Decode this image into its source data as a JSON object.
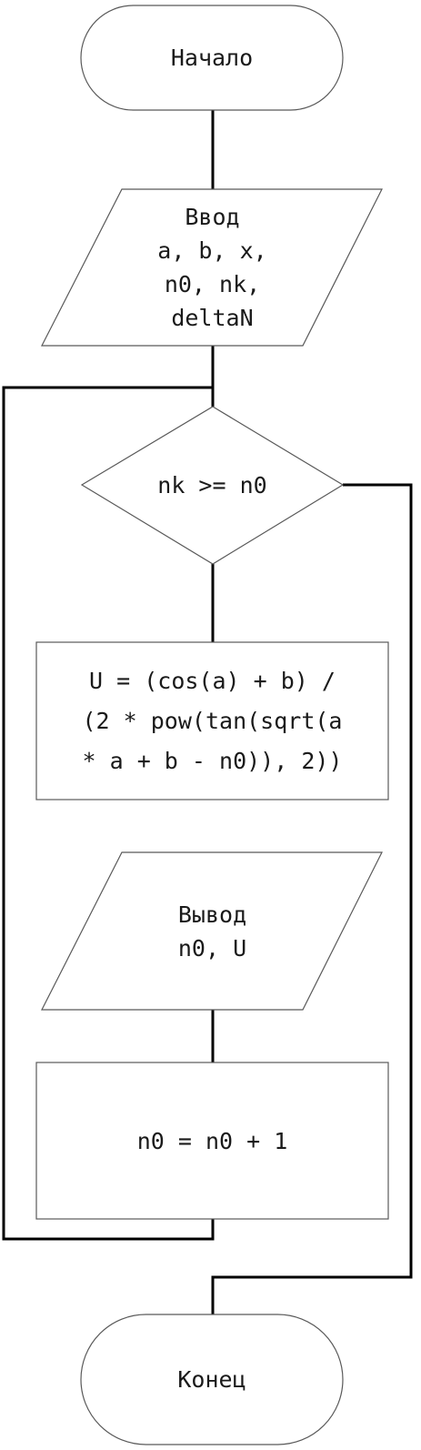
{
  "colors": {
    "line": "#000000",
    "shape_stroke": "#595959",
    "text": "#1a1a1a",
    "background": "#ffffff"
  },
  "flowchart": {
    "nodes": [
      {
        "id": "start",
        "shape": "terminator",
        "label": "Начало"
      },
      {
        "id": "input",
        "shape": "parallelogram",
        "label": "Ввод\na, b, x,\nn0, nk,\ndeltaN"
      },
      {
        "id": "condition",
        "shape": "decision",
        "label": "nk >= n0"
      },
      {
        "id": "compute",
        "shape": "process",
        "label": "U = (cos(a) + b) /\n(2 * pow(tan(sqrt(a\n* a + b - n0)), 2))"
      },
      {
        "id": "output",
        "shape": "parallelogram",
        "label": "Вывод\nn0, U"
      },
      {
        "id": "increment",
        "shape": "process",
        "label": "n0 = n0 + 1"
      },
      {
        "id": "end",
        "shape": "terminator",
        "label": "Конец"
      }
    ],
    "edges": [
      {
        "from": "start",
        "to": "input"
      },
      {
        "from": "input",
        "to": "condition"
      },
      {
        "from": "condition",
        "to": "compute",
        "branch": "true"
      },
      {
        "from": "output",
        "to": "increment"
      },
      {
        "from": "increment",
        "to": "condition",
        "type": "loop-back"
      },
      {
        "from": "condition",
        "to": "end",
        "branch": "false"
      }
    ]
  }
}
